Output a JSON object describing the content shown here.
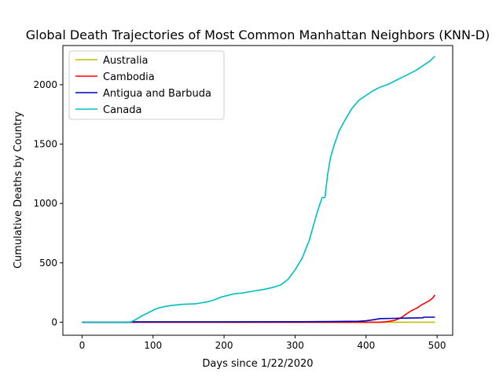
{
  "chart_data": {
    "type": "line",
    "title": "Global Death Trajectories of Most Common Manhattan Neighbors (KNN-D)",
    "xlabel": "Days since 1/22/2020",
    "ylabel": "Cumulative Deaths by Country",
    "xlim": [
      -27,
      522
    ],
    "ylim": [
      -110,
      2330
    ],
    "xticks": [
      0,
      100,
      200,
      300,
      400,
      500
    ],
    "yticks": [
      0,
      500,
      1000,
      1500,
      2000
    ],
    "grid": false,
    "legend_position": "top-left",
    "series": [
      {
        "name": "Australia",
        "color": "#bfbf00",
        "x": [
          0,
          69,
          100,
          200,
          300,
          400,
          450,
          497
        ],
        "y": [
          0,
          0,
          0,
          0,
          0,
          0,
          0,
          0
        ]
      },
      {
        "name": "Cambodia",
        "color": "#ff0000",
        "x": [
          0,
          69,
          100,
          200,
          300,
          400,
          420,
          430,
          440,
          450,
          458,
          465,
          472,
          478,
          484,
          490,
          494,
          497
        ],
        "y": [
          0,
          0,
          0,
          0,
          0,
          0,
          0,
          5,
          15,
          40,
          75,
          100,
          120,
          145,
          165,
          185,
          205,
          230
        ]
      },
      {
        "name": "Antigua and Barbuda",
        "color": "#0000bf",
        "x": [
          0,
          69,
          70,
          100,
          200,
          300,
          350,
          390,
          400,
          410,
          420,
          440,
          460,
          480,
          481,
          497
        ],
        "y": [
          0,
          0,
          3,
          3,
          3,
          4,
          5,
          8,
          12,
          20,
          30,
          32,
          35,
          37,
          42,
          42
        ]
      },
      {
        "name": "Canada",
        "color": "#00bfbf",
        "x": [
          0,
          68,
          75,
          85,
          95,
          105,
          115,
          125,
          140,
          160,
          175,
          185,
          195,
          205,
          215,
          225,
          240,
          255,
          270,
          280,
          290,
          300,
          310,
          320,
          328,
          332,
          338,
          342,
          344,
          346,
          350,
          355,
          362,
          370,
          380,
          390,
          400,
          410,
          420,
          430,
          440,
          450,
          460,
          470,
          480,
          490,
          497
        ],
        "y": [
          0,
          0,
          20,
          55,
          85,
          115,
          130,
          140,
          150,
          155,
          170,
          185,
          210,
          225,
          240,
          245,
          260,
          275,
          295,
          315,
          360,
          440,
          540,
          690,
          860,
          940,
          1050,
          1050,
          1150,
          1250,
          1390,
          1490,
          1610,
          1700,
          1800,
          1870,
          1910,
          1950,
          1980,
          2000,
          2030,
          2060,
          2090,
          2120,
          2160,
          2200,
          2240
        ]
      }
    ]
  },
  "colors": {
    "axes": "#000000",
    "legend_border": "#cccccc"
  }
}
